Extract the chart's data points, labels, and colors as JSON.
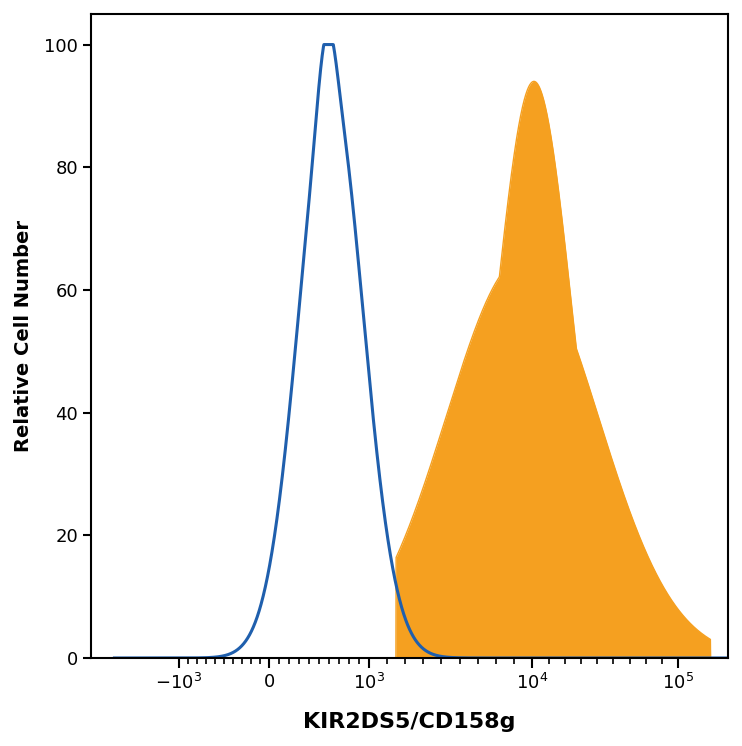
{
  "title": "KIR2DS5/CD158g",
  "ylabel": "Relative Cell Number",
  "ylim": [
    0,
    105
  ],
  "yticks": [
    0,
    20,
    40,
    60,
    80,
    100
  ],
  "blue_color": "#1F5FAD",
  "orange_color": "#F5A020",
  "background_color": "#ffffff",
  "title_fontsize": 16,
  "axis_label_fontsize": 14,
  "screen_positions": {
    "-1000": 0.06,
    "0": 0.215,
    "1000": 0.385,
    "10000": 0.665,
    "100000": 0.915
  }
}
